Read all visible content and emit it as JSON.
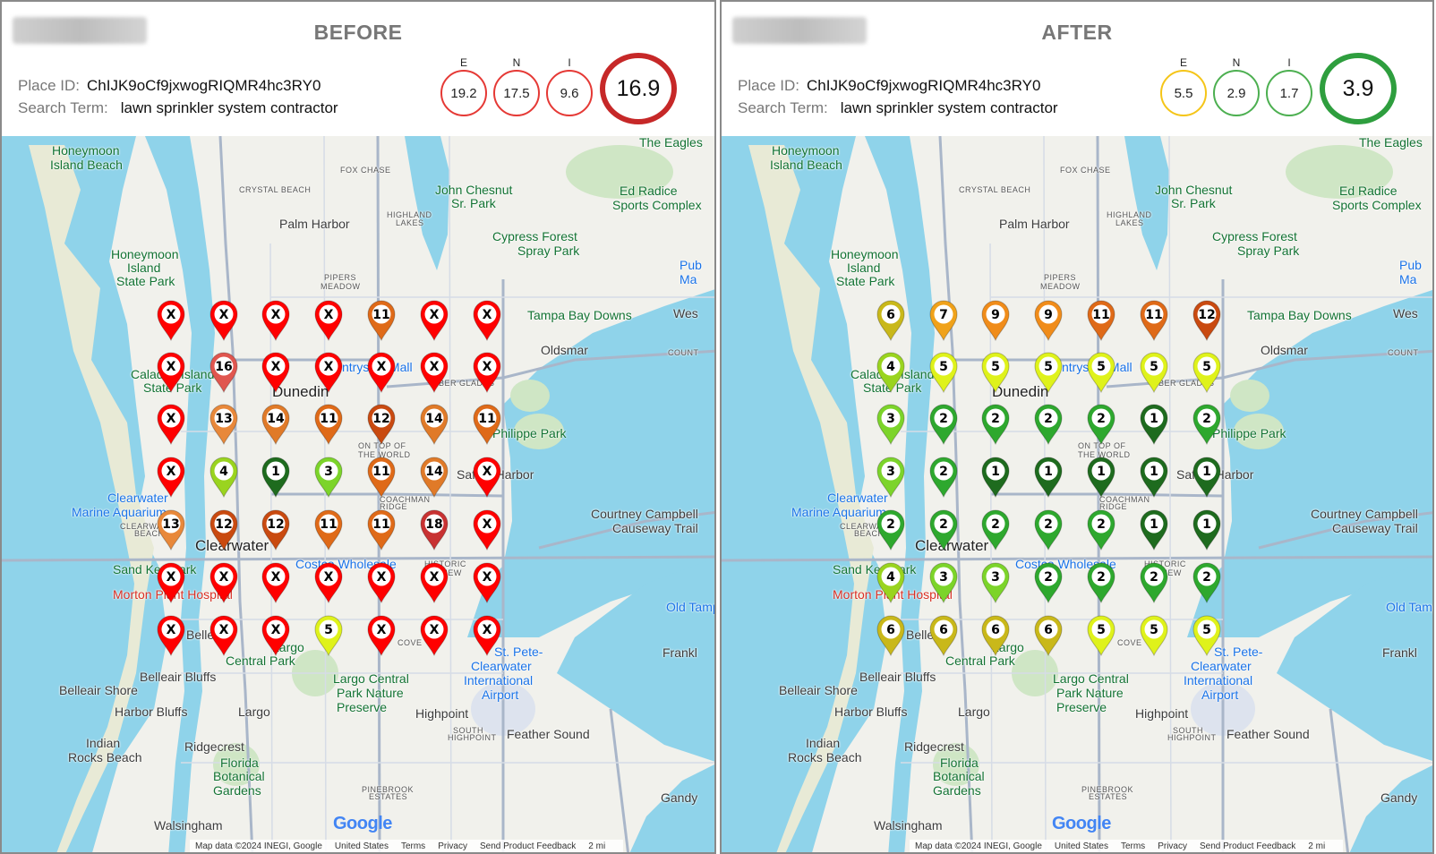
{
  "panels": [
    {
      "title": "BEFORE",
      "place_id_label": "Place ID:",
      "place_id": "ChIJK9oCf9jxwogRIQMR4hc3RY0",
      "search_term_label": "Search Term:",
      "search_term": "lawn sprinkler system contractor",
      "metrics": [
        {
          "label": "E",
          "value": "19.2",
          "color": "#e53935"
        },
        {
          "label": "N",
          "value": "17.5",
          "color": "#e53935"
        },
        {
          "label": "I",
          "value": "9.6",
          "color": "#e53935"
        }
      ],
      "total": {
        "value": "16.9",
        "color": "#c62828"
      },
      "grid": [
        [
          "X",
          "X",
          "X",
          "X",
          "11",
          "X",
          "X"
        ],
        [
          "X",
          "16",
          "X",
          "X",
          "X",
          "X",
          "X"
        ],
        [
          "X",
          "13",
          "14",
          "11",
          "12",
          "14",
          "11"
        ],
        [
          "X",
          "4",
          "1",
          "3",
          "11",
          "14",
          "X"
        ],
        [
          "13",
          "12",
          "12",
          "11",
          "11",
          "18",
          "X"
        ],
        [
          "X",
          "X",
          "X",
          "X",
          "X",
          "X",
          "X"
        ],
        [
          "X",
          "X",
          "X",
          "5",
          "X",
          "X",
          "X"
        ]
      ]
    },
    {
      "title": "AFTER",
      "place_id_label": "Place ID:",
      "place_id": "ChIJK9oCf9jxwogRIQMR4hc3RY0",
      "search_term_label": "Search Term:",
      "search_term": "lawn sprinkler system contractor",
      "metrics": [
        {
          "label": "E",
          "value": "5.5",
          "color": "#f5c518"
        },
        {
          "label": "N",
          "value": "2.9",
          "color": "#4caf50"
        },
        {
          "label": "I",
          "value": "1.7",
          "color": "#4caf50"
        }
      ],
      "total": {
        "value": "3.9",
        "color": "#2e9e3e"
      },
      "grid": [
        [
          "6",
          "7",
          "9",
          "9",
          "11",
          "11",
          "12"
        ],
        [
          "4",
          "5",
          "5",
          "5",
          "5",
          "5",
          "5"
        ],
        [
          "3",
          "2",
          "2",
          "2",
          "2",
          "1",
          "2"
        ],
        [
          "3",
          "2",
          "1",
          "1",
          "1",
          "1",
          "1"
        ],
        [
          "2",
          "2",
          "2",
          "2",
          "2",
          "1",
          "1"
        ],
        [
          "4",
          "3",
          "3",
          "2",
          "2",
          "2",
          "2"
        ],
        [
          "6",
          "6",
          "6",
          "6",
          "5",
          "5",
          "5"
        ]
      ]
    }
  ],
  "rank_colors": {
    "1": "#1e6b1e",
    "2": "#2ea82e",
    "3": "#7cd42a",
    "4": "#9ad41f",
    "5": "#dff21b",
    "6": "#c9b81a",
    "7": "#f0a21a",
    "9": "#f08c1a",
    "11": "#df6a18",
    "12": "#c94a10",
    "13": "#e8883a",
    "14": "#e07a28",
    "16": "#e0564f",
    "18": "#c83232",
    "X": "#ff0000"
  },
  "map_labels": [
    {
      "text": "Honeymoon",
      "cls": "park",
      "name": "label-honeymoon-island-beach-1"
    },
    {
      "text": "Island Beach",
      "cls": "park",
      "name": "label-honeymoon-island-beach-2"
    },
    {
      "text": "FOX CHASE",
      "cls": "small",
      "name": "label-fox-chase"
    },
    {
      "text": "CRYSTAL BEACH",
      "cls": "small",
      "name": "label-crystal-beach"
    },
    {
      "text": "John Chesnut",
      "cls": "park",
      "name": "label-john-chesnut-1"
    },
    {
      "text": "Sr. Park",
      "cls": "park",
      "name": "label-john-chesnut-2"
    },
    {
      "text": "Ed Radice",
      "cls": "park",
      "name": "label-ed-radice-1"
    },
    {
      "text": "Sports Complex",
      "cls": "park",
      "name": "label-ed-radice-2"
    },
    {
      "text": "The Eagles",
      "cls": "park",
      "name": "label-the-eagles"
    },
    {
      "text": "Palm Harbor",
      "cls": "",
      "name": "label-palm-harbor"
    },
    {
      "text": "HIGHLAND",
      "cls": "small",
      "name": "label-highland-1"
    },
    {
      "text": "LAKES",
      "cls": "small",
      "name": "label-highland-2"
    },
    {
      "text": "Cypress Forest",
      "cls": "park",
      "name": "label-cypress-forest-1"
    },
    {
      "text": "Spray Park",
      "cls": "park",
      "name": "label-cypress-forest-2"
    },
    {
      "text": "Honeymoon",
      "cls": "park",
      "name": "label-honeymoon-state-park-1"
    },
    {
      "text": "Island",
      "cls": "park",
      "name": "label-honeymoon-state-park-2"
    },
    {
      "text": "State Park",
      "cls": "park",
      "name": "label-honeymoon-state-park-3"
    },
    {
      "text": "PIPERS",
      "cls": "small",
      "name": "label-pipers-1"
    },
    {
      "text": "MEADOW",
      "cls": "small",
      "name": "label-pipers-2"
    },
    {
      "text": "Pub",
      "cls": "water",
      "name": "label-pub-1"
    },
    {
      "text": "Ma",
      "cls": "water",
      "name": "label-pub-2"
    },
    {
      "text": "Tampa Bay Downs",
      "cls": "park",
      "name": "label-tampa-bay-downs"
    },
    {
      "text": "Wes",
      "cls": "",
      "name": "label-wes"
    },
    {
      "text": "Oldsmar",
      "cls": "",
      "name": "label-oldsmar"
    },
    {
      "text": "COUNT",
      "cls": "small",
      "name": "label-count"
    },
    {
      "text": "Calad",
      "cls": "park",
      "name": "label-caladesi-1"
    },
    {
      "text": "Island",
      "cls": "park",
      "name": "label-caladesi-2"
    },
    {
      "text": "State Park",
      "cls": "park",
      "name": "label-caladesi-3"
    },
    {
      "text": "Dunedin",
      "cls": "big",
      "name": "label-dunedin"
    },
    {
      "text": "ntryside Mall",
      "cls": "water",
      "name": "label-countryside-mall"
    },
    {
      "text": "BER GLADES",
      "cls": "small",
      "name": "label-timber-glades"
    },
    {
      "text": "Philippe Park",
      "cls": "park",
      "name": "label-philippe-park"
    },
    {
      "text": "ON TOP OF",
      "cls": "small",
      "name": "label-on-top-1"
    },
    {
      "text": "THE WORLD",
      "cls": "small",
      "name": "label-on-top-2"
    },
    {
      "text": "Safety Harbor",
      "cls": "",
      "name": "label-safety-harbor"
    },
    {
      "text": "Clearwater",
      "cls": "water",
      "name": "label-clearwater-aquarium-1"
    },
    {
      "text": "Marine Aquarium",
      "cls": "water",
      "name": "label-clearwater-aquarium-2"
    },
    {
      "text": "COACHMAN",
      "cls": "small",
      "name": "label-coachman-1"
    },
    {
      "text": "RIDGE",
      "cls": "small",
      "name": "label-coachman-2"
    },
    {
      "text": "CLEARWATER",
      "cls": "small",
      "name": "label-cw-beach-1"
    },
    {
      "text": "BEACH",
      "cls": "small",
      "name": "label-cw-beach-2"
    },
    {
      "text": "Clearwater",
      "cls": "big",
      "name": "label-clearwater"
    },
    {
      "text": "Courtney Campbell",
      "cls": "",
      "name": "label-courtney-1"
    },
    {
      "text": "Causeway Trail",
      "cls": "",
      "name": "label-courtney-2"
    },
    {
      "text": "Sand Key Park",
      "cls": "park",
      "name": "label-sand-key"
    },
    {
      "text": "Costco Wholesale",
      "cls": "water",
      "name": "label-costco"
    },
    {
      "text": "HISTORIC",
      "cls": "small",
      "name": "label-historic-1"
    },
    {
      "text": "BAYVIEW",
      "cls": "small",
      "name": "label-historic-2"
    },
    {
      "text": "Morton Plant Hospital",
      "cls": "red",
      "name": "label-morton-plant"
    },
    {
      "text": "Old Tampa",
      "cls": "water",
      "name": "label-old-tampa"
    },
    {
      "text": "Belleair",
      "cls": "",
      "name": "label-belleair"
    },
    {
      "text": "Largo",
      "cls": "park",
      "name": "label-largo-central-1"
    },
    {
      "text": "Central Park",
      "cls": "park",
      "name": "label-largo-central-2"
    },
    {
      "text": "COVE",
      "cls": "small",
      "name": "label-cove"
    },
    {
      "text": "St. Pete-",
      "cls": "water",
      "name": "label-airport-1"
    },
    {
      "text": "Clearwater",
      "cls": "water",
      "name": "label-airport-2"
    },
    {
      "text": "International",
      "cls": "water",
      "name": "label-airport-3"
    },
    {
      "text": "Airport",
      "cls": "water",
      "name": "label-airport-4"
    },
    {
      "text": "Frankl",
      "cls": "",
      "name": "label-frankl"
    },
    {
      "text": "Belleair Bluffs",
      "cls": "",
      "name": "label-belleair-bluffs"
    },
    {
      "text": "Largo Central",
      "cls": "park",
      "name": "label-largo-preserve-1"
    },
    {
      "text": "Park Nature",
      "cls": "park",
      "name": "label-largo-preserve-2"
    },
    {
      "text": "Preserve",
      "cls": "park",
      "name": "label-largo-preserve-3"
    },
    {
      "text": "Belleair Shore",
      "cls": "",
      "name": "label-belleair-shore"
    },
    {
      "text": "Harbor Bluffs",
      "cls": "",
      "name": "label-harbor-bluffs"
    },
    {
      "text": "Largo",
      "cls": "",
      "name": "label-largo"
    },
    {
      "text": "Highpoint",
      "cls": "",
      "name": "label-highpoint"
    },
    {
      "text": "SOUTH",
      "cls": "small",
      "name": "label-south-highpoint-1"
    },
    {
      "text": "HIGHPOINT",
      "cls": "small",
      "name": "label-south-highpoint-2"
    },
    {
      "text": "Feather Sound",
      "cls": "",
      "name": "label-feather-sound"
    },
    {
      "text": "Indian",
      "cls": "",
      "name": "label-indian-rocks-1"
    },
    {
      "text": "Rocks Beach",
      "cls": "",
      "name": "label-indian-rocks-2"
    },
    {
      "text": "Ridgecrest",
      "cls": "",
      "name": "label-ridgecrest"
    },
    {
      "text": "Florida",
      "cls": "park",
      "name": "label-botanical-1"
    },
    {
      "text": "Botanical",
      "cls": "park",
      "name": "label-botanical-2"
    },
    {
      "text": "Gardens",
      "cls": "park",
      "name": "label-botanical-3"
    },
    {
      "text": "PINEBROOK",
      "cls": "small",
      "name": "label-pinebrook-1"
    },
    {
      "text": "ESTATES",
      "cls": "small",
      "name": "label-pinebrook-2"
    },
    {
      "text": "Gandy",
      "cls": "",
      "name": "label-gandy"
    },
    {
      "text": "Walsingham",
      "cls": "",
      "name": "label-walsingham"
    }
  ],
  "google_logo": "Google",
  "attribution": [
    "Map data ©2024 INEGI, Google",
    "United States",
    "Terms",
    "Privacy",
    "Send Product Feedback",
    "2 mi"
  ]
}
